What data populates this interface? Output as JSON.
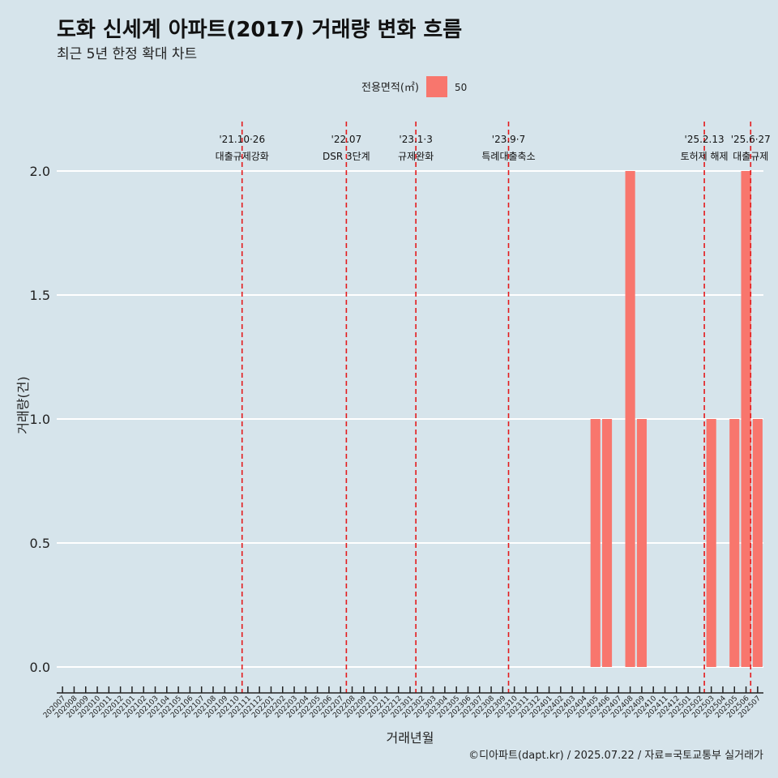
{
  "title": "도화 신세계 아파트(2017) 거래량 변화 흐름",
  "subtitle": "최근 5년 한정 확대 차트",
  "caption": "©디아파트(dapt.kr) / 2025.07.22 / 자료=국토교통부 실거래가",
  "colors": {
    "background": "#d6e4eb",
    "bar": "#f8766d",
    "event_line": "#e41a1c",
    "grid": "#ffffff"
  },
  "chart_data": {
    "type": "bar",
    "xlabel": "거래년월",
    "ylabel": "거래량(건)",
    "ylim": [
      0,
      2
    ],
    "yticks": [
      0.0,
      0.5,
      1.0,
      1.5,
      2.0
    ],
    "ytick_labels": [
      "0.0",
      "0.5",
      "1.0",
      "1.5",
      "2.0"
    ],
    "legend": {
      "title": "전용면적(㎡)",
      "entries": [
        "50"
      ],
      "position": "top"
    },
    "categories": [
      "202007",
      "202008",
      "202009",
      "202010",
      "202011",
      "202012",
      "202101",
      "202102",
      "202103",
      "202104",
      "202105",
      "202106",
      "202107",
      "202108",
      "202109",
      "202110",
      "202111",
      "202112",
      "202201",
      "202202",
      "202203",
      "202204",
      "202205",
      "202206",
      "202207",
      "202208",
      "202209",
      "202210",
      "202211",
      "202212",
      "202301",
      "202302",
      "202303",
      "202304",
      "202305",
      "202306",
      "202307",
      "202308",
      "202309",
      "202310",
      "202311",
      "202312",
      "202401",
      "202402",
      "202403",
      "202404",
      "202405",
      "202406",
      "202407",
      "202408",
      "202409",
      "202410",
      "202411",
      "202412",
      "202501",
      "202502",
      "202503",
      "202504",
      "202505",
      "202506",
      "202507"
    ],
    "series": [
      {
        "name": "50",
        "values": [
          0,
          0,
          0,
          0,
          0,
          0,
          0,
          0,
          0,
          0,
          0,
          0,
          0,
          0,
          0,
          0,
          0,
          0,
          0,
          0,
          0,
          0,
          0,
          0,
          0,
          0,
          0,
          0,
          0,
          0,
          0,
          0,
          0,
          0,
          0,
          0,
          0,
          0,
          0,
          0,
          0,
          0,
          0,
          0,
          0,
          0,
          1,
          1,
          0,
          2,
          1,
          0,
          0,
          0,
          0,
          0,
          1,
          0,
          1,
          2,
          1
        ]
      }
    ],
    "events": [
      {
        "x_index": 15.5,
        "date": "'21.10·26",
        "label": "대출규제강화"
      },
      {
        "x_index": 24.5,
        "date": "'22.07",
        "label": "DSR 3단계"
      },
      {
        "x_index": 30.5,
        "date": "'23.1·3",
        "label": "규제완화"
      },
      {
        "x_index": 38.5,
        "date": "'23.9·7",
        "label": "특례대출축소"
      },
      {
        "x_index": 55.4,
        "date": "'25.2.13",
        "label": "토허제 해제"
      },
      {
        "x_index": 59.4,
        "date": "'25.6·27",
        "label": "대출규제"
      }
    ]
  }
}
